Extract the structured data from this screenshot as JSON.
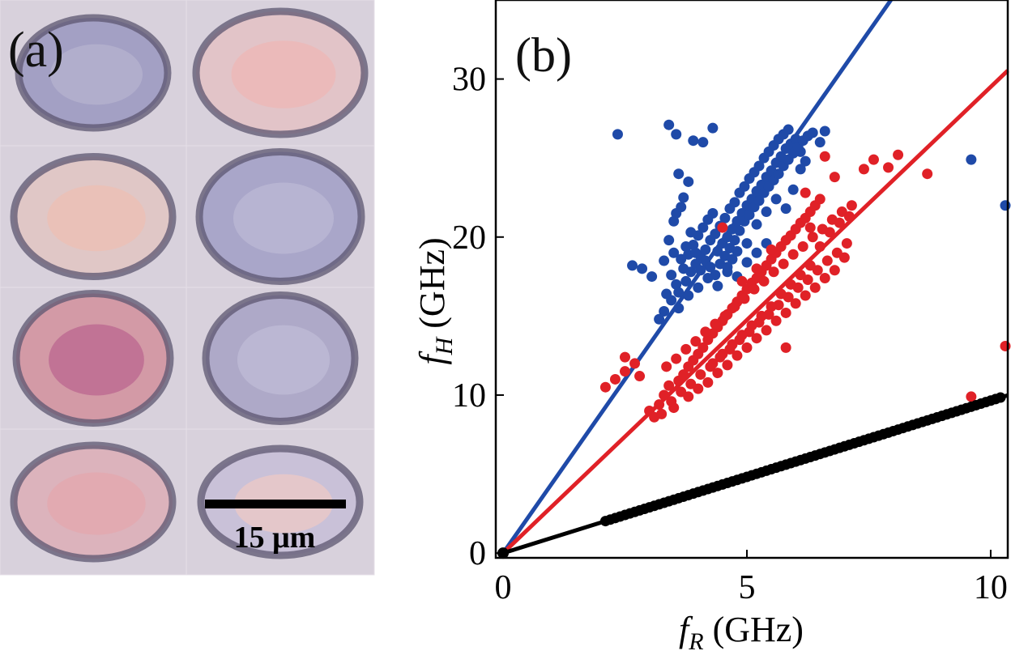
{
  "panel_a": {
    "label": "(a)",
    "scale_bar_text": "15 μm",
    "cells": [
      {
        "tone": "#a3a0c4",
        "inner": "#b7b4d0"
      },
      {
        "tone": "#e2c4c8",
        "inner": "#efb7b3"
      },
      {
        "tone": "#e0c7c6",
        "inner": "#eebfb2"
      },
      {
        "tone": "#a9a6c9",
        "inner": "#bdbbd6"
      },
      {
        "tone": "#d39aa6",
        "inner": "#b9638f"
      },
      {
        "tone": "#aea9c8",
        "inner": "#c1bdd7"
      },
      {
        "tone": "#dcb3bc",
        "inner": "#e4a6ad"
      },
      {
        "tone": "#c9c1d8",
        "inner": "#f0c9c4"
      }
    ]
  },
  "chart_data": {
    "type": "scatter",
    "panel_label": "(b)",
    "xlabel_italic": "f",
    "xlabel_sub": "R",
    "xlabel_unit": " (GHz)",
    "ylabel_italic": "f",
    "ylabel_sub": "H",
    "ylabel_unit": " (GHz)",
    "xlim": [
      -0.15,
      10.35
    ],
    "ylim": [
      -0.3,
      35
    ],
    "xticks": [
      {
        "value": 0,
        "label": "0"
      },
      {
        "value": 5,
        "label": "5"
      },
      {
        "value": 10,
        "label": "10"
      }
    ],
    "yticks": [
      {
        "value": 0,
        "label": "0"
      },
      {
        "value": 10,
        "label": "10"
      },
      {
        "value": 20,
        "label": "20"
      },
      {
        "value": 30,
        "label": "30"
      }
    ],
    "series": [
      {
        "name": "blue",
        "color": "#1f4aa8",
        "line": {
          "slope": 4.4
        },
        "points": [
          [
            2.35,
            26.5
          ],
          [
            3.4,
            27.1
          ],
          [
            3.55,
            26.5
          ],
          [
            3.9,
            26.1
          ],
          [
            4.1,
            26.0
          ],
          [
            4.3,
            26.9
          ],
          [
            2.65,
            18.2
          ],
          [
            2.85,
            18.0
          ],
          [
            3.05,
            17.5
          ],
          [
            3.3,
            18.5
          ],
          [
            3.6,
            24.0
          ],
          [
            3.8,
            23.5
          ],
          [
            3.7,
            22.5
          ],
          [
            3.55,
            21.5
          ],
          [
            3.5,
            21.0
          ],
          [
            3.65,
            21.9
          ],
          [
            3.4,
            19.8
          ],
          [
            3.5,
            19.0
          ],
          [
            3.2,
            14.8
          ],
          [
            3.3,
            15.3
          ],
          [
            3.45,
            16.0
          ],
          [
            3.6,
            16.5
          ],
          [
            3.75,
            17.2
          ],
          [
            3.85,
            17.8
          ],
          [
            3.95,
            18.3
          ],
          [
            4.05,
            18.8
          ],
          [
            4.15,
            19.2
          ],
          [
            4.25,
            19.8
          ],
          [
            4.35,
            20.2
          ],
          [
            4.45,
            20.7
          ],
          [
            4.55,
            21.2
          ],
          [
            4.65,
            21.8
          ],
          [
            4.75,
            22.2
          ],
          [
            4.85,
            22.8
          ],
          [
            4.95,
            23.2
          ],
          [
            5.05,
            23.7
          ],
          [
            5.15,
            24.1
          ],
          [
            5.25,
            24.5
          ],
          [
            5.35,
            25.0
          ],
          [
            5.45,
            25.4
          ],
          [
            5.55,
            25.8
          ],
          [
            5.65,
            26.2
          ],
          [
            5.75,
            26.5
          ],
          [
            5.85,
            26.8
          ],
          [
            3.55,
            17.0
          ],
          [
            3.7,
            18.0
          ],
          [
            3.8,
            18.9
          ],
          [
            3.9,
            19.5
          ],
          [
            4.0,
            20.1
          ],
          [
            4.1,
            20.6
          ],
          [
            4.2,
            21.1
          ],
          [
            4.3,
            21.5
          ],
          [
            4.4,
            19.1
          ],
          [
            4.5,
            19.6
          ],
          [
            4.6,
            20.0
          ],
          [
            4.7,
            20.5
          ],
          [
            4.8,
            21.0
          ],
          [
            4.9,
            21.5
          ],
          [
            5.0,
            22.0
          ],
          [
            5.1,
            22.4
          ],
          [
            5.2,
            22.9
          ],
          [
            5.3,
            23.3
          ],
          [
            5.4,
            23.8
          ],
          [
            5.5,
            24.2
          ],
          [
            5.6,
            24.7
          ],
          [
            5.7,
            25.1
          ],
          [
            5.8,
            25.6
          ],
          [
            5.9,
            25.9
          ],
          [
            6.0,
            26.2
          ],
          [
            6.1,
            25.4
          ],
          [
            6.2,
            24.8
          ],
          [
            3.35,
            16.4
          ],
          [
            3.45,
            17.6
          ],
          [
            3.65,
            18.6
          ],
          [
            3.75,
            19.4
          ],
          [
            3.85,
            20.3
          ],
          [
            3.95,
            19.0
          ],
          [
            4.05,
            17.9
          ],
          [
            4.15,
            18.5
          ],
          [
            4.25,
            18.1
          ],
          [
            4.35,
            17.6
          ],
          [
            4.45,
            18.3
          ],
          [
            4.55,
            18.8
          ],
          [
            4.65,
            19.3
          ],
          [
            4.75,
            19.8
          ],
          [
            4.85,
            20.4
          ],
          [
            4.95,
            21.0
          ],
          [
            5.05,
            21.4
          ],
          [
            5.15,
            21.9
          ],
          [
            5.25,
            22.3
          ],
          [
            5.35,
            22.8
          ],
          [
            5.45,
            23.2
          ],
          [
            5.55,
            23.6
          ],
          [
            5.65,
            24.0
          ],
          [
            5.75,
            24.5
          ],
          [
            5.85,
            24.9
          ],
          [
            5.95,
            25.3
          ],
          [
            6.05,
            25.7
          ],
          [
            6.15,
            26.1
          ],
          [
            6.25,
            26.4
          ],
          [
            6.35,
            26.6
          ],
          [
            6.5,
            26.0
          ],
          [
            6.6,
            26.7
          ],
          [
            4.6,
            17.8
          ],
          [
            4.7,
            18.6
          ],
          [
            4.8,
            19.1
          ],
          [
            5.0,
            19.6
          ],
          [
            5.2,
            20.8
          ],
          [
            5.4,
            21.6
          ],
          [
            5.6,
            22.4
          ],
          [
            5.8,
            21.8
          ],
          [
            5.95,
            23.0
          ],
          [
            6.1,
            24.3
          ],
          [
            3.6,
            15.5
          ],
          [
            3.8,
            16.3
          ],
          [
            4.0,
            16.8
          ],
          [
            4.2,
            17.4
          ],
          [
            4.4,
            16.9
          ],
          [
            4.6,
            18.1
          ],
          [
            4.8,
            17.5
          ],
          [
            5.0,
            18.4
          ],
          [
            5.2,
            19.0
          ],
          [
            5.4,
            19.6
          ],
          [
            9.6,
            24.9
          ],
          [
            10.3,
            22.0
          ]
        ]
      },
      {
        "name": "red",
        "color": "#e02127",
        "line": {
          "slope": 2.95
        },
        "points": [
          [
            2.1,
            10.5
          ],
          [
            2.3,
            11.0
          ],
          [
            2.5,
            11.5
          ],
          [
            2.7,
            12.0
          ],
          [
            2.5,
            12.4
          ],
          [
            2.8,
            11.2
          ],
          [
            3.0,
            9.0
          ],
          [
            3.1,
            8.6
          ],
          [
            3.2,
            9.4
          ],
          [
            3.3,
            10.0
          ],
          [
            3.4,
            10.6
          ],
          [
            3.5,
            9.2
          ],
          [
            3.6,
            10.9
          ],
          [
            3.7,
            11.3
          ],
          [
            3.8,
            11.8
          ],
          [
            3.9,
            12.2
          ],
          [
            4.0,
            12.6
          ],
          [
            4.1,
            13.0
          ],
          [
            4.2,
            13.5
          ],
          [
            4.3,
            13.9
          ],
          [
            4.4,
            14.3
          ],
          [
            4.5,
            14.7
          ],
          [
            4.6,
            15.1
          ],
          [
            4.7,
            15.5
          ],
          [
            4.8,
            15.9
          ],
          [
            4.9,
            16.3
          ],
          [
            5.0,
            16.7
          ],
          [
            5.1,
            17.1
          ],
          [
            5.2,
            17.4
          ],
          [
            5.3,
            17.8
          ],
          [
            5.4,
            18.2
          ],
          [
            5.5,
            18.6
          ],
          [
            5.6,
            19.0
          ],
          [
            5.7,
            19.4
          ],
          [
            5.8,
            19.8
          ],
          [
            5.9,
            20.1
          ],
          [
            6.0,
            20.5
          ],
          [
            6.1,
            20.9
          ],
          [
            6.2,
            21.2
          ],
          [
            6.3,
            21.6
          ],
          [
            6.4,
            22.0
          ],
          [
            6.5,
            22.4
          ],
          [
            3.25,
            8.8
          ],
          [
            3.45,
            9.6
          ],
          [
            3.65,
            10.2
          ],
          [
            3.85,
            10.7
          ],
          [
            4.05,
            11.3
          ],
          [
            4.25,
            11.8
          ],
          [
            4.45,
            12.4
          ],
          [
            4.65,
            12.9
          ],
          [
            4.85,
            13.5
          ],
          [
            5.05,
            14.0
          ],
          [
            5.25,
            14.6
          ],
          [
            5.45,
            15.1
          ],
          [
            5.65,
            15.7
          ],
          [
            5.85,
            16.2
          ],
          [
            6.05,
            16.8
          ],
          [
            6.25,
            17.3
          ],
          [
            6.45,
            17.9
          ],
          [
            6.65,
            18.5
          ],
          [
            6.85,
            19.0
          ],
          [
            7.05,
            19.6
          ],
          [
            3.35,
            11.8
          ],
          [
            3.55,
            12.3
          ],
          [
            3.75,
            12.9
          ],
          [
            3.95,
            13.4
          ],
          [
            4.15,
            14.0
          ],
          [
            4.35,
            14.5
          ],
          [
            4.55,
            15.0
          ],
          [
            4.75,
            15.6
          ],
          [
            4.95,
            16.1
          ],
          [
            5.15,
            16.7
          ],
          [
            5.35,
            17.2
          ],
          [
            5.55,
            17.8
          ],
          [
            5.75,
            18.3
          ],
          [
            5.95,
            18.9
          ],
          [
            6.15,
            19.4
          ],
          [
            6.35,
            20.0
          ],
          [
            6.55,
            20.5
          ],
          [
            6.75,
            21.1
          ],
          [
            6.95,
            21.6
          ],
          [
            7.15,
            22.0
          ],
          [
            3.8,
            9.9
          ],
          [
            4.0,
            10.4
          ],
          [
            4.2,
            10.8
          ],
          [
            4.4,
            11.4
          ],
          [
            4.6,
            11.9
          ],
          [
            4.8,
            12.5
          ],
          [
            5.0,
            13.0
          ],
          [
            5.2,
            13.6
          ],
          [
            5.4,
            14.1
          ],
          [
            5.6,
            14.7
          ],
          [
            5.8,
            15.2
          ],
          [
            6.0,
            15.8
          ],
          [
            6.2,
            16.3
          ],
          [
            6.4,
            16.8
          ],
          [
            6.6,
            17.4
          ],
          [
            6.8,
            17.9
          ],
          [
            7.0,
            18.7
          ],
          [
            4.3,
            12.0
          ],
          [
            4.5,
            12.6
          ],
          [
            4.7,
            13.2
          ],
          [
            4.9,
            13.8
          ],
          [
            5.1,
            14.4
          ],
          [
            5.3,
            15.0
          ],
          [
            5.5,
            15.6
          ],
          [
            5.7,
            16.4
          ],
          [
            5.9,
            17.0
          ],
          [
            6.1,
            17.6
          ],
          [
            6.3,
            18.2
          ],
          [
            6.5,
            19.4
          ],
          [
            6.7,
            20.3
          ],
          [
            6.9,
            20.9
          ],
          [
            7.1,
            21.3
          ],
          [
            4.5,
            20.6
          ],
          [
            6.2,
            22.8
          ],
          [
            6.8,
            23.8
          ],
          [
            7.4,
            24.3
          ],
          [
            7.6,
            24.9
          ],
          [
            8.1,
            25.2
          ],
          [
            7.9,
            24.4
          ],
          [
            8.7,
            24.0
          ],
          [
            6.6,
            25.1
          ],
          [
            4.9,
            17.2
          ],
          [
            5.2,
            18.0
          ],
          [
            5.5,
            19.2
          ],
          [
            5.8,
            13.0
          ],
          [
            6.3,
            20.6
          ],
          [
            9.6,
            9.9
          ],
          [
            10.3,
            13.1
          ]
        ]
      },
      {
        "name": "black",
        "color": "#000000",
        "line": {
          "slope": 0.965
        },
        "points_range": {
          "start": 2.1,
          "end": 10.25,
          "step": 0.1
        }
      }
    ]
  }
}
